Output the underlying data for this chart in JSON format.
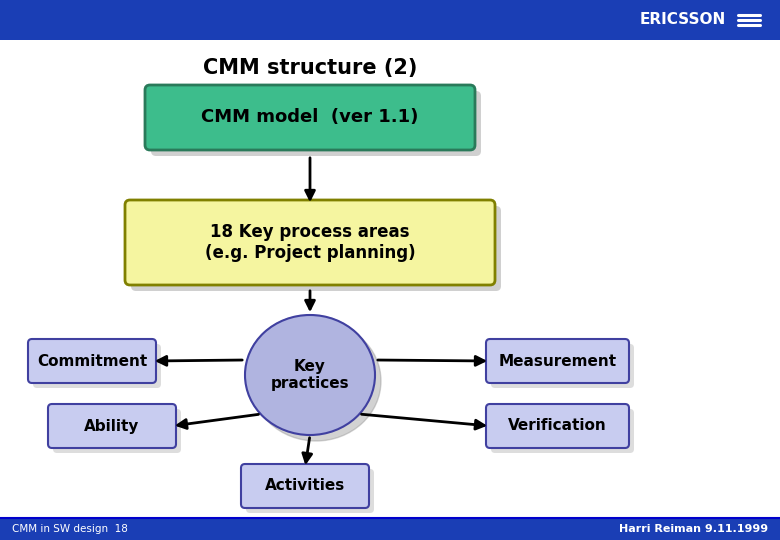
{
  "title": "CMM structure (2)",
  "header_color": "#1a3eb5",
  "header_text": "ERICSSON",
  "footer_left": "CMM in SW design  18",
  "footer_right": "Harri Reiman 9.11.1999",
  "box_cmm_text": "CMM model  (ver 1.1)",
  "box_cmm_color": "#3dbd8c",
  "box_cmm_border": "#2a7a5a",
  "box_kpa_text": "18 Key process areas\n(e.g. Project planning)",
  "box_kpa_color": "#f5f5a0",
  "box_kpa_border": "#808000",
  "circle_text": "Key\npractices",
  "circle_color": "#b0b4e0",
  "circle_shadow": "#909090",
  "box_commitment_text": "Commitment",
  "box_ability_text": "Ability",
  "box_measurement_text": "Measurement",
  "box_verification_text": "Verification",
  "box_activities_text": "Activities",
  "satellite_color": "#c8ccf0",
  "satellite_border": "#4040a0",
  "shadow_color": "#aaaaaa",
  "arrow_color": "#000000"
}
